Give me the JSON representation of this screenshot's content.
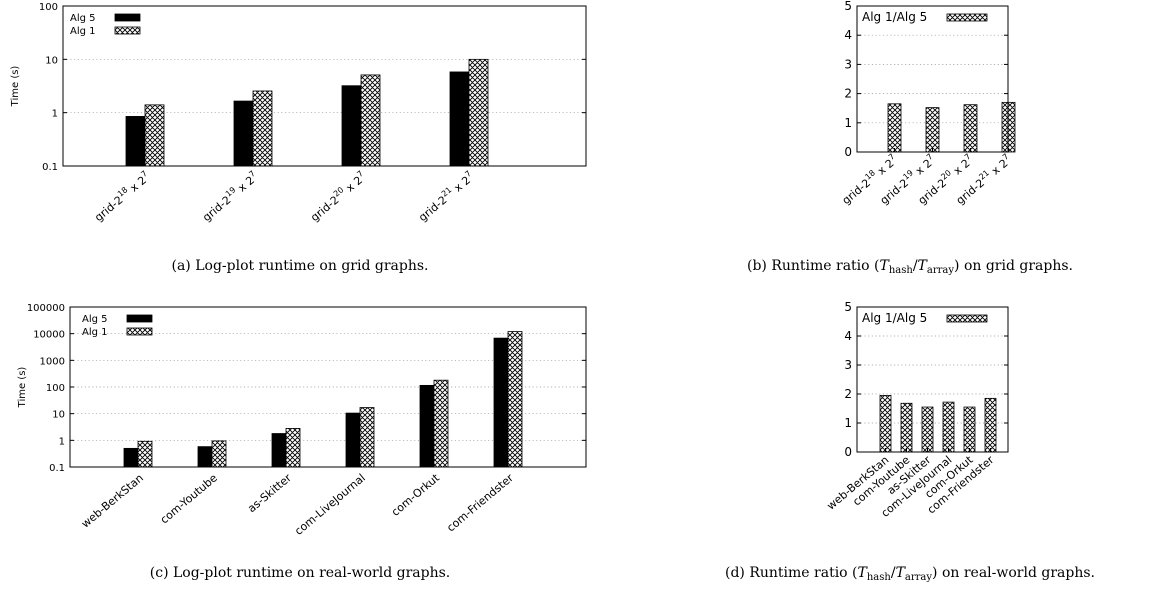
{
  "colors": {
    "series_solid": "#000000",
    "axis": "#000000",
    "grid": "#999999"
  },
  "chart_data": [
    {
      "type": "bar",
      "scale": "log",
      "categories": [
        "grid-2^18 x 2^7",
        "grid-2^19 x 2^7",
        "grid-2^20 x 2^7",
        "grid-2^21 x 2^7"
      ],
      "series": [
        {
          "name": "Alg 5",
          "values": [
            0.85,
            1.65,
            3.2,
            5.8
          ]
        },
        {
          "name": "Alg 1",
          "values": [
            1.4,
            2.55,
            5.1,
            10.0
          ]
        }
      ],
      "ylabel": "Time (s)",
      "ylim": [
        0.1,
        100
      ],
      "yticks": [
        "100",
        "10",
        "1",
        "0.1"
      ],
      "legend": "top-left",
      "grid": true,
      "caption": "(a) Log-plot runtime on grid graphs."
    },
    {
      "type": "bar",
      "scale": "linear",
      "categories": [
        "grid-2^18 x 2^7",
        "grid-2^19 x 2^7",
        "grid-2^20 x 2^7",
        "grid-2^21 x 2^7"
      ],
      "series": [
        {
          "name": "Alg 1/Alg 5",
          "values": [
            1.65,
            1.52,
            1.62,
            1.7
          ]
        }
      ],
      "ylim": [
        0,
        5
      ],
      "yticks": [
        "0",
        "1",
        "2",
        "3",
        "4",
        "5"
      ],
      "legend": "top-left",
      "grid": true,
      "caption": "(b) Runtime ratio (T_hash/T_array) on grid graphs."
    },
    {
      "type": "bar",
      "scale": "log",
      "categories": [
        "web-BerkStan",
        "com-Youtube",
        "as-Skitter",
        "com-LiveJournal",
        "com-Orkut",
        "com-Friendster"
      ],
      "series": [
        {
          "name": "Alg 5",
          "values": [
            0.5,
            0.58,
            1.8,
            10.5,
            115,
            6800
          ]
        },
        {
          "name": "Alg 1",
          "values": [
            0.92,
            0.95,
            2.8,
            17,
            180,
            12000
          ]
        }
      ],
      "ylabel": "Time (s)",
      "ylim": [
        0.1,
        100000
      ],
      "yticks": [
        "100000",
        "10000",
        "1000",
        "100",
        "10",
        "1",
        "0.1"
      ],
      "legend": "top-left",
      "grid": true,
      "caption": "(c) Log-plot runtime on real-world graphs."
    },
    {
      "type": "bar",
      "scale": "linear",
      "categories": [
        "web-BerkStan",
        "com-Youtube",
        "as-Skitter",
        "com-LiveJournal",
        "com-Orkut",
        "com-Friendster"
      ],
      "series": [
        {
          "name": "Alg 1/Alg 5",
          "values": [
            1.95,
            1.68,
            1.55,
            1.72,
            1.55,
            1.85
          ]
        }
      ],
      "ylim": [
        0,
        5
      ],
      "yticks": [
        "0",
        "1",
        "2",
        "3",
        "4",
        "5"
      ],
      "legend": "top-left",
      "grid": true,
      "caption": "(d) Runtime ratio (T_hash/T_array) on real-world graphs."
    }
  ]
}
